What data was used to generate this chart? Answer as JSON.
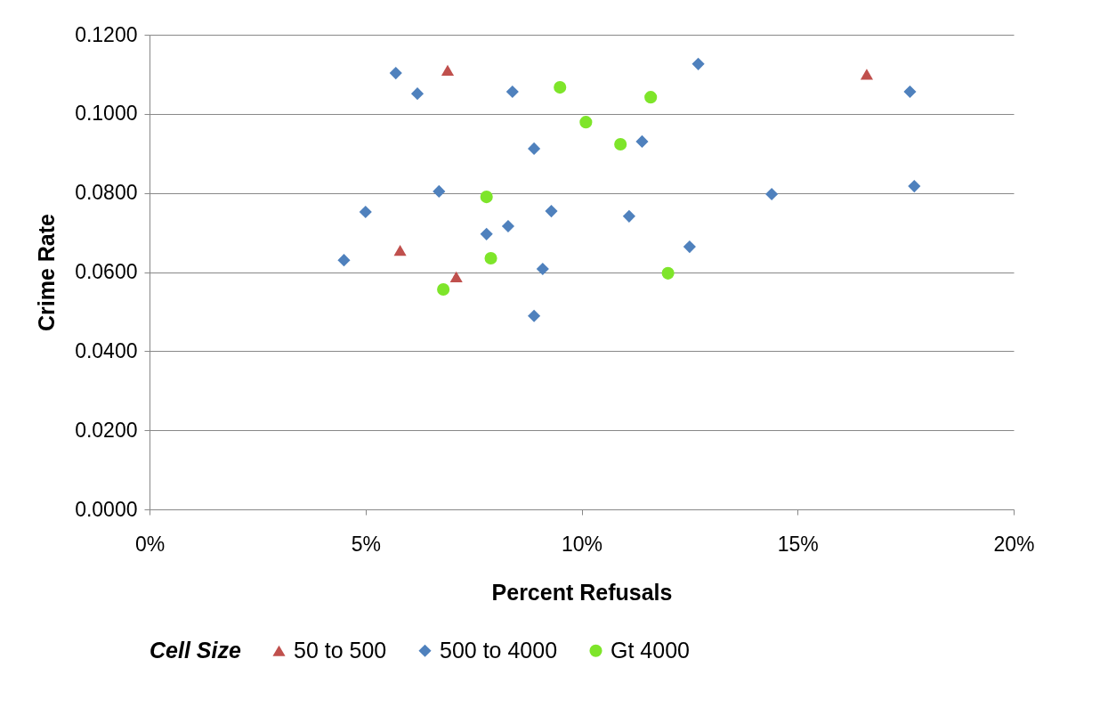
{
  "chart_data": {
    "type": "scatter",
    "xlabel": "Percent Refusals",
    "ylabel": "Crime Rate",
    "legend_title": "Cell Size",
    "legend": "bottom",
    "grid": "y",
    "xlim": [
      0,
      20
    ],
    "xticks": [
      {
        "value": 0,
        "label": "0%"
      },
      {
        "value": 5,
        "label": "5%"
      },
      {
        "value": 10,
        "label": "10%"
      },
      {
        "value": 15,
        "label": "15%"
      },
      {
        "value": 20,
        "label": "20%"
      }
    ],
    "ylim": [
      0,
      0.12
    ],
    "yticks": [
      {
        "value": 0,
        "label": "0.0000"
      },
      {
        "value": 0.02,
        "label": "0.0200"
      },
      {
        "value": 0.04,
        "label": "0.0400"
      },
      {
        "value": 0.06,
        "label": "0.0600"
      },
      {
        "value": 0.08,
        "label": "0.0800"
      },
      {
        "value": 0.1,
        "label": "0.1000"
      },
      {
        "value": 0.12,
        "label": "0.1200"
      }
    ],
    "series": [
      {
        "name": "50 to 500",
        "color": "#c0504d",
        "marker": "triangle",
        "x": [
          6.9,
          16.6,
          5.8,
          7.1
        ],
        "values": [
          0.111,
          0.11,
          0.0655,
          0.0588
        ]
      },
      {
        "name": "500 to 4000",
        "color": "#4f81bd",
        "marker": "diamond",
        "x": [
          5.7,
          6.2,
          8.4,
          4.5,
          5.0,
          6.7,
          7.8,
          8.3,
          8.9,
          9.3,
          9.1,
          8.9,
          11.1,
          11.4,
          12.7,
          12.5,
          14.4,
          17.6,
          17.7
        ],
        "values": [
          0.1103,
          0.1051,
          0.1056,
          0.063,
          0.0752,
          0.0804,
          0.0696,
          0.0716,
          0.0912,
          0.0754,
          0.0608,
          0.0489,
          0.0741,
          0.093,
          0.1126,
          0.0664,
          0.0797,
          0.1056,
          0.0817
        ]
      },
      {
        "name": "Gt 4000",
        "color": "#7ee52a",
        "marker": "circle",
        "x": [
          9.5,
          10.1,
          10.9,
          11.6,
          7.8,
          7.9,
          6.8,
          12.0
        ],
        "values": [
          0.1067,
          0.0979,
          0.0923,
          0.1042,
          0.079,
          0.0635,
          0.0556,
          0.0597
        ]
      }
    ]
  }
}
